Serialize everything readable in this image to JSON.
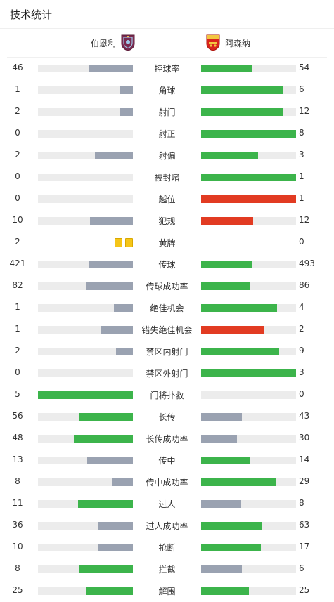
{
  "title": "技术统计",
  "teams": {
    "home": {
      "name": "伯恩利",
      "crest_icon": "burnley-crest-icon"
    },
    "away": {
      "name": "阿森纳",
      "crest_icon": "arsenal-crest-icon"
    }
  },
  "colors": {
    "grey": "#9aa2b1",
    "green": "#3cb44b",
    "red": "#e23b22",
    "track": "#ececec",
    "yellow": "#f5c518"
  },
  "stats": [
    {
      "label": "控球率",
      "home": "46",
      "away": "54",
      "home_fill": 0.46,
      "away_fill": 0.54,
      "home_color": "grey",
      "away_color": "green"
    },
    {
      "label": "角球",
      "home": "1",
      "away": "6",
      "home_fill": 0.14,
      "away_fill": 0.86,
      "home_color": "grey",
      "away_color": "green"
    },
    {
      "label": "射门",
      "home": "2",
      "away": "12",
      "home_fill": 0.14,
      "away_fill": 0.86,
      "home_color": "grey",
      "away_color": "green"
    },
    {
      "label": "射正",
      "home": "0",
      "away": "8",
      "home_fill": 0.0,
      "away_fill": 1.0,
      "home_color": "grey",
      "away_color": "green"
    },
    {
      "label": "射偏",
      "home": "2",
      "away": "3",
      "home_fill": 0.4,
      "away_fill": 0.6,
      "home_color": "grey",
      "away_color": "green"
    },
    {
      "label": "被封堵",
      "home": "0",
      "away": "1",
      "home_fill": 0.0,
      "away_fill": 1.0,
      "home_color": "grey",
      "away_color": "green"
    },
    {
      "label": "越位",
      "home": "0",
      "away": "1",
      "home_fill": 0.0,
      "away_fill": 1.0,
      "home_color": "grey",
      "away_color": "red"
    },
    {
      "label": "犯规",
      "home": "10",
      "away": "12",
      "home_fill": 0.45,
      "away_fill": 0.55,
      "home_color": "grey",
      "away_color": "red"
    },
    {
      "label": "黄牌",
      "home": "2",
      "away": "0",
      "home_fill": 0.0,
      "away_fill": 0.0,
      "home_color": "grey",
      "away_color": "green",
      "yellow_cards_home": 2
    },
    {
      "label": "传球",
      "home": "421",
      "away": "493",
      "home_fill": 0.46,
      "away_fill": 0.54,
      "home_color": "grey",
      "away_color": "green"
    },
    {
      "label": "传球成功率",
      "home": "82",
      "away": "86",
      "home_fill": 0.49,
      "away_fill": 0.51,
      "home_color": "grey",
      "away_color": "green"
    },
    {
      "label": "绝佳机会",
      "home": "1",
      "away": "4",
      "home_fill": 0.2,
      "away_fill": 0.8,
      "home_color": "grey",
      "away_color": "green"
    },
    {
      "label": "错失绝佳机会",
      "home": "1",
      "away": "2",
      "home_fill": 0.33,
      "away_fill": 0.67,
      "home_color": "grey",
      "away_color": "red"
    },
    {
      "label": "禁区内射门",
      "home": "2",
      "away": "9",
      "home_fill": 0.18,
      "away_fill": 0.82,
      "home_color": "grey",
      "away_color": "green"
    },
    {
      "label": "禁区外射门",
      "home": "0",
      "away": "3",
      "home_fill": 0.0,
      "away_fill": 1.0,
      "home_color": "grey",
      "away_color": "green"
    },
    {
      "label": "门将扑救",
      "home": "5",
      "away": "0",
      "home_fill": 1.0,
      "away_fill": 0.0,
      "home_color": "green",
      "away_color": "grey"
    },
    {
      "label": "长传",
      "home": "56",
      "away": "43",
      "home_fill": 0.57,
      "away_fill": 0.43,
      "home_color": "green",
      "away_color": "grey"
    },
    {
      "label": "长传成功率",
      "home": "48",
      "away": "30",
      "home_fill": 0.62,
      "away_fill": 0.38,
      "home_color": "green",
      "away_color": "grey"
    },
    {
      "label": "传中",
      "home": "13",
      "away": "14",
      "home_fill": 0.48,
      "away_fill": 0.52,
      "home_color": "grey",
      "away_color": "green"
    },
    {
      "label": "传中成功率",
      "home": "8",
      "away": "29",
      "home_fill": 0.22,
      "away_fill": 0.79,
      "home_color": "grey",
      "away_color": "green"
    },
    {
      "label": "过人",
      "home": "11",
      "away": "8",
      "home_fill": 0.58,
      "away_fill": 0.42,
      "home_color": "green",
      "away_color": "grey"
    },
    {
      "label": "过人成功率",
      "home": "36",
      "away": "63",
      "home_fill": 0.36,
      "away_fill": 0.64,
      "home_color": "grey",
      "away_color": "green"
    },
    {
      "label": "抢断",
      "home": "10",
      "away": "17",
      "home_fill": 0.37,
      "away_fill": 0.63,
      "home_color": "grey",
      "away_color": "green"
    },
    {
      "label": "拦截",
      "home": "8",
      "away": "6",
      "home_fill": 0.57,
      "away_fill": 0.43,
      "home_color": "green",
      "away_color": "grey"
    },
    {
      "label": "解围",
      "home": "25",
      "away": "25",
      "home_fill": 0.5,
      "away_fill": 0.5,
      "home_color": "green",
      "away_color": "green"
    }
  ]
}
